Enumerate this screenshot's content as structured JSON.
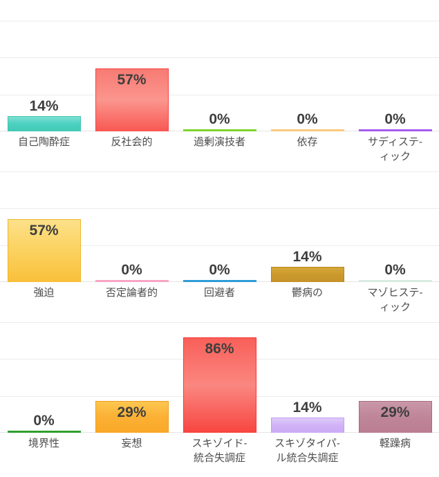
{
  "page": {
    "background": "#ffffff",
    "grid_color": "#ececec",
    "value_label_color": "#3e3e3e",
    "category_label_color": "#4c4c4c"
  },
  "charts": [
    {
      "name": "row-1",
      "bars": [
        {
          "label": "自己陶酔症",
          "value": 14,
          "value_label": "14%",
          "stops": [
            "#7ee0d3",
            "#4bd0bf",
            "#44c9b6"
          ],
          "border": "#3fc2b0"
        },
        {
          "label": "反社会的",
          "value": 57,
          "value_label": "57%",
          "stops": [
            "#f87b74",
            "#fa958d",
            "#f85852"
          ],
          "border": "#f5433e"
        },
        {
          "label": "過剰演技者",
          "value": 0,
          "value_label": "0%",
          "line_color": "#7ed42b"
        },
        {
          "label": "依存",
          "value": 0,
          "value_label": "0%",
          "line_color": "#fbc87f"
        },
        {
          "label": "サディステ-\nィック",
          "value": 0,
          "value_label": "0%",
          "line_color": "#a55cf2"
        }
      ]
    },
    {
      "name": "row-2",
      "bars": [
        {
          "label": "強迫",
          "value": 57,
          "value_label": "57%",
          "stops": [
            "#fce089",
            "#fbd25f",
            "#f9c03a"
          ],
          "border": "#efb52e"
        },
        {
          "label": "否定論者的",
          "value": 0,
          "value_label": "0%",
          "line_color": "#f9a5c4"
        },
        {
          "label": "回避者",
          "value": 0,
          "value_label": "0%",
          "line_color": "#2e9bd7"
        },
        {
          "label": "鬱病の",
          "value": 14,
          "value_label": "14%",
          "stops": [
            "#d5a837",
            "#cb9a2d",
            "#c4922a"
          ],
          "border": "#b3851f"
        },
        {
          "label": "マゾヒステ-\nィック",
          "value": 0,
          "value_label": "0%",
          "line_color": "#d9ebe1"
        }
      ]
    },
    {
      "name": "row-3",
      "bars": [
        {
          "label": "境界性",
          "value": 0,
          "value_label": "0%",
          "line_color": "#2e9f2e"
        },
        {
          "label": "妄想",
          "value": 29,
          "value_label": "29%",
          "stops": [
            "#fcc750",
            "#fbb034",
            "#faa827"
          ],
          "border": "#ef9c1e"
        },
        {
          "label": "スキゾイド-\n統合失調症",
          "value": 86,
          "value_label": "86%",
          "stops": [
            "#f95f59",
            "#fa8780",
            "#f84540"
          ],
          "border": "#f53733"
        },
        {
          "label": "スキゾタイパ-\nル統合失調症",
          "value": 14,
          "value_label": "14%",
          "stops": [
            "#decafa",
            "#d0b2f6",
            "#cbaaf5"
          ],
          "border": "#c29df1"
        },
        {
          "label": "軽躁病",
          "value": 29,
          "value_label": "29%",
          "stops": [
            "#c998a8",
            "#bf8598",
            "#ba7d91"
          ],
          "border": "#a96b81"
        }
      ]
    }
  ],
  "chart_data": [
    {
      "type": "bar",
      "categories": [
        "自己陶酔症",
        "反社会的",
        "過剰演技者",
        "依存",
        "サディステ-ィック"
      ],
      "values": [
        14,
        57,
        0,
        0,
        0
      ],
      "value_labels": [
        "14%",
        "57%",
        "0%",
        "0%",
        "0%"
      ],
      "bar_colors": [
        "#4bd0bf",
        "#f87b74",
        "#7ed42b",
        "#fbc87f",
        "#a55cf2"
      ],
      "title": "",
      "xlabel": "",
      "ylabel": "",
      "ylim": [
        0,
        100
      ],
      "grid": true,
      "legend": false
    },
    {
      "type": "bar",
      "categories": [
        "強迫",
        "否定論者的",
        "回避者",
        "鬱病の",
        "マゾヒステ-ィック"
      ],
      "values": [
        57,
        0,
        0,
        14,
        0
      ],
      "value_labels": [
        "57%",
        "0%",
        "0%",
        "14%",
        "0%"
      ],
      "bar_colors": [
        "#fbd25f",
        "#f9a5c4",
        "#2e9bd7",
        "#cb9a2d",
        "#d9ebe1"
      ],
      "title": "",
      "xlabel": "",
      "ylabel": "",
      "ylim": [
        0,
        100
      ],
      "grid": true,
      "legend": false
    },
    {
      "type": "bar",
      "categories": [
        "境界性",
        "妄想",
        "スキゾイド-統合失調症",
        "スキゾタイパ-ル統合失調症",
        "軽躁病"
      ],
      "values": [
        0,
        29,
        86,
        14,
        29
      ],
      "value_labels": [
        "0%",
        "29%",
        "86%",
        "14%",
        "29%"
      ],
      "bar_colors": [
        "#2e9f2e",
        "#fbb034",
        "#fa8780",
        "#d0b2f6",
        "#bf8598"
      ],
      "title": "",
      "xlabel": "",
      "ylabel": "",
      "ylim": [
        0,
        100
      ],
      "grid": true,
      "legend": false
    }
  ]
}
